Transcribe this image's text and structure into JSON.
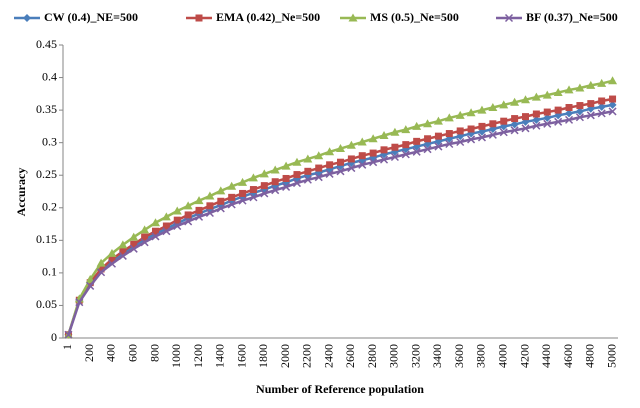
{
  "chart_data": {
    "type": "line",
    "x_label": "Number  of Reference population",
    "y_label": "Accuracy",
    "categories": [
      "1",
      null,
      "200",
      null,
      "400",
      null,
      "600",
      null,
      "800",
      null,
      "1000",
      null,
      "1200",
      null,
      "1400",
      null,
      "1600",
      null,
      "1800",
      null,
      "2000",
      null,
      "2200",
      null,
      "2400",
      null,
      "2600",
      null,
      "2800",
      null,
      "3000",
      null,
      "3200",
      null,
      "3400",
      null,
      "3600",
      null,
      "3800",
      null,
      "4000",
      null,
      "4200",
      null,
      "4400",
      null,
      "4600",
      null,
      "4800",
      null,
      "5000"
    ],
    "ylim": [
      0,
      0.45
    ],
    "yticks": [
      0,
      0.05,
      0.1,
      0.15,
      0.2,
      0.25,
      0.3,
      0.35,
      0.4,
      0.45
    ],
    "grid": false,
    "legend": "top",
    "series": [
      {
        "name": "CW (0.4)_NE=500",
        "color": "#4a7ebb",
        "marker": "diamond",
        "values": [
          0.005,
          0.057,
          0.083,
          0.104,
          0.118,
          0.13,
          0.141,
          0.151,
          0.16,
          0.168,
          0.176,
          0.184,
          0.191,
          0.198,
          0.204,
          0.211,
          0.217,
          0.223,
          0.228,
          0.234,
          0.239,
          0.245,
          0.25,
          0.254,
          0.259,
          0.264,
          0.269,
          0.273,
          0.277,
          0.282,
          0.286,
          0.29,
          0.294,
          0.298,
          0.302,
          0.306,
          0.31,
          0.314,
          0.317,
          0.321,
          0.325,
          0.328,
          0.332,
          0.335,
          0.338,
          0.342,
          0.345,
          0.348,
          0.352,
          0.355,
          0.358
        ]
      },
      {
        "name": "EMA (0.42)_Ne=500",
        "color": "#be4b48",
        "marker": "square",
        "values": [
          0.005,
          0.058,
          0.085,
          0.106,
          0.121,
          0.133,
          0.144,
          0.155,
          0.164,
          0.172,
          0.181,
          0.189,
          0.196,
          0.203,
          0.21,
          0.216,
          0.222,
          0.228,
          0.234,
          0.24,
          0.245,
          0.251,
          0.256,
          0.261,
          0.266,
          0.27,
          0.275,
          0.28,
          0.284,
          0.289,
          0.293,
          0.297,
          0.302,
          0.306,
          0.31,
          0.314,
          0.318,
          0.321,
          0.325,
          0.329,
          0.333,
          0.337,
          0.34,
          0.344,
          0.347,
          0.35,
          0.354,
          0.357,
          0.36,
          0.364,
          0.367
        ]
      },
      {
        "name": "MS (0.5)_Ne=500",
        "color": "#98b954",
        "marker": "triangle",
        "values": [
          0.005,
          0.06,
          0.09,
          0.115,
          0.13,
          0.143,
          0.155,
          0.166,
          0.177,
          0.186,
          0.195,
          0.203,
          0.211,
          0.218,
          0.226,
          0.233,
          0.239,
          0.246,
          0.252,
          0.258,
          0.264,
          0.27,
          0.275,
          0.28,
          0.286,
          0.291,
          0.296,
          0.301,
          0.306,
          0.311,
          0.316,
          0.32,
          0.325,
          0.329,
          0.333,
          0.338,
          0.342,
          0.346,
          0.35,
          0.354,
          0.358,
          0.362,
          0.366,
          0.37,
          0.373,
          0.377,
          0.381,
          0.384,
          0.388,
          0.391,
          0.395
        ]
      },
      {
        "name": "BF (0.37)_Ne=500",
        "color": "#7d60a0",
        "marker": "x",
        "values": [
          0.005,
          0.055,
          0.08,
          0.101,
          0.114,
          0.126,
          0.137,
          0.147,
          0.156,
          0.164,
          0.172,
          0.179,
          0.186,
          0.192,
          0.199,
          0.205,
          0.211,
          0.216,
          0.222,
          0.227,
          0.232,
          0.238,
          0.243,
          0.247,
          0.252,
          0.256,
          0.261,
          0.266,
          0.27,
          0.274,
          0.278,
          0.282,
          0.286,
          0.29,
          0.294,
          0.298,
          0.301,
          0.305,
          0.308,
          0.312,
          0.316,
          0.319,
          0.322,
          0.326,
          0.329,
          0.332,
          0.335,
          0.339,
          0.342,
          0.345,
          0.348
        ]
      }
    ]
  }
}
